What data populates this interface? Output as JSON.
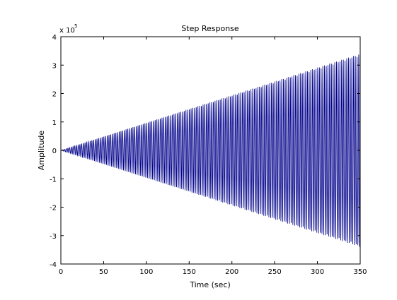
{
  "chart_data": {
    "type": "line",
    "title": "Step Response",
    "xlabel": "Time (sec)",
    "ylabel": "Amplitude",
    "xlim": [
      0,
      350
    ],
    "ylim": [
      -400000,
      400000
    ],
    "x_ticks": [
      "0",
      "50",
      "100",
      "150",
      "200",
      "250",
      "300",
      "350"
    ],
    "y_ticks": [
      "4",
      "3",
      "2",
      "1",
      "0",
      "-1",
      "-2",
      "-3",
      "-4"
    ],
    "y_exponent_base": "x 10",
    "y_exponent_power": "5",
    "grid": false,
    "series": [
      {
        "color": "#00008B",
        "description_values": {
          "x_start": 0,
          "x_end": 350,
          "amplitude_start": 0,
          "amplitude_end": 340000,
          "oscillation_period": 2
        }
      }
    ]
  }
}
